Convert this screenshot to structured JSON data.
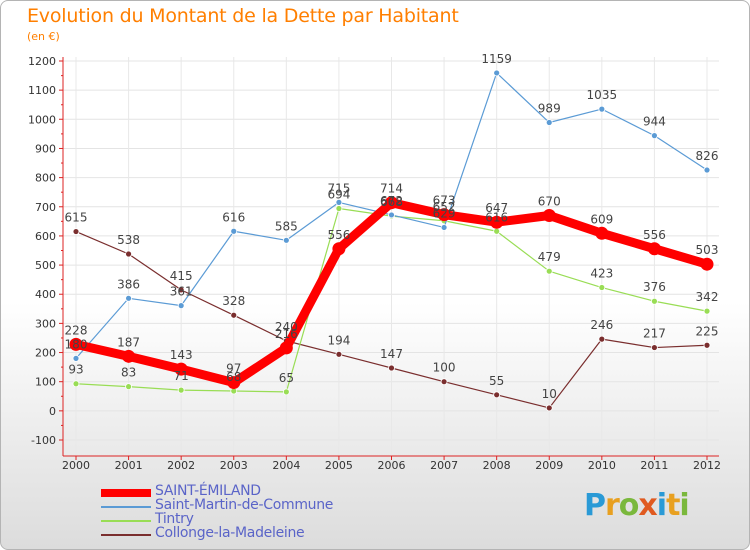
{
  "title": "Evolution du Montant de la Dette par Habitant",
  "subtitle": "(en €)",
  "logo": {
    "letters": [
      {
        "ch": "P",
        "color": "#2a9ad6"
      },
      {
        "ch": "r",
        "color": "#e8a020"
      },
      {
        "ch": "o",
        "color": "#7ab83c"
      },
      {
        "ch": "x",
        "color": "#e05a20"
      },
      {
        "ch": "i",
        "color": "#2a9ad6"
      },
      {
        "ch": "t",
        "color": "#e8a020"
      },
      {
        "ch": "i",
        "color": "#7ab83c"
      }
    ]
  },
  "chart_data": {
    "type": "line",
    "title": "Evolution du Montant de la Dette par Habitant",
    "subtitle": "(en €)",
    "x": [
      "2000",
      "2001",
      "2002",
      "2003",
      "2004",
      "2005",
      "2006",
      "2007",
      "2008",
      "2009",
      "2010",
      "2011",
      "2012"
    ],
    "ylim": [
      -100,
      1200
    ],
    "yticks": [
      -100,
      0,
      100,
      200,
      300,
      400,
      500,
      600,
      700,
      800,
      900,
      1000,
      1100,
      1200
    ],
    "grid": "horizontal",
    "legend_position": "bottom-left",
    "series": [
      {
        "name": "SAINT-ÉMILAND",
        "color": "#ff0000",
        "values": [
          228,
          187,
          143,
          97,
          216,
          556,
          714,
          673,
          647,
          670,
          609,
          556,
          503
        ],
        "labels": [
          "228",
          "187",
          "143",
          "97",
          "216",
          "556",
          "714",
          "673",
          "647",
          "670",
          "609",
          "556",
          "503"
        ]
      },
      {
        "name": "Saint-Martin-de-Commune",
        "color": "#5b9bd5",
        "values": [
          180,
          386,
          361,
          616,
          585,
          715,
          672,
          629,
          1159,
          989,
          1035,
          944,
          826
        ],
        "labels": [
          "180",
          "386",
          "361",
          "616",
          "585",
          "715",
          "672",
          "629",
          "1159",
          "989",
          "1035",
          "944",
          "826"
        ]
      },
      {
        "name": "Tintry",
        "color": "#99dd55",
        "values": [
          93,
          83,
          71,
          68,
          65,
          694,
          668,
          652,
          616,
          479,
          423,
          376,
          342
        ],
        "labels": [
          "93",
          "83",
          "71",
          "68",
          "65",
          "694",
          "668",
          "652",
          "616",
          "479",
          "423",
          "376",
          "342"
        ]
      },
      {
        "name": "Collonge-la-Madeleine",
        "color": "#7a2e2e",
        "values": [
          615,
          538,
          415,
          328,
          240,
          194,
          147,
          100,
          55,
          10,
          246,
          217,
          225
        ],
        "labels": [
          "615",
          "538",
          "415",
          "328",
          "240",
          "194",
          "147",
          "100",
          "55",
          "10",
          "246",
          "217",
          "225"
        ]
      }
    ]
  }
}
